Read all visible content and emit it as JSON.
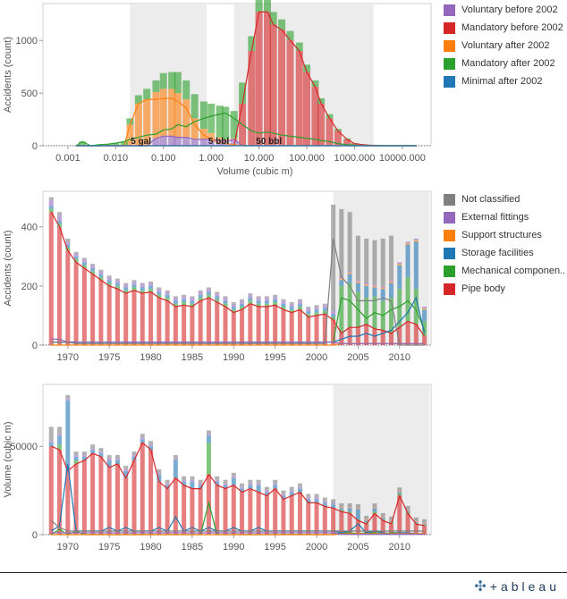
{
  "colors": {
    "voluntary_before": "#9467bd",
    "mandatory_before": "#d62728",
    "voluntary_after": "#ff7f0e",
    "mandatory_after": "#2ca02c",
    "minimal_after": "#1f77b4",
    "not_classified": "#7f7f7f",
    "external_fittings": "#9467bd",
    "support_structures": "#ff7f0e",
    "storage_facilities": "#1f77b4",
    "mechanical_components": "#2ca02c",
    "pipe_body": "#d62728"
  },
  "legend1": [
    {
      "label": "Voluntary before 2002",
      "color": "#9467bd"
    },
    {
      "label": "Mandatory before 2002",
      "color": "#d62728"
    },
    {
      "label": "Voluntary after 2002",
      "color": "#ff7f0e"
    },
    {
      "label": "Mandatory after 2002",
      "color": "#2ca02c"
    },
    {
      "label": "Minimal after 2002",
      "color": "#1f77b4"
    }
  ],
  "legend2": [
    {
      "label": "Not classified",
      "color": "#7f7f7f"
    },
    {
      "label": "External fittings",
      "color": "#9467bd"
    },
    {
      "label": "Support structures",
      "color": "#ff7f0e"
    },
    {
      "label": "Storage facilities",
      "color": "#1f77b4"
    },
    {
      "label": "Mechanical componen..",
      "color": "#2ca02c"
    },
    {
      "label": "Pipe body",
      "color": "#d62728"
    }
  ],
  "brand": {
    "name": "+ableau"
  },
  "chart_data": [
    {
      "type": "bar",
      "xlabel": "Volume (cubic m)",
      "ylabel": "Accidents (count)",
      "x_scale": "log",
      "xlim": [
        0.0003,
        40000
      ],
      "ylim": [
        0,
        1350
      ],
      "x_ticks": [
        "0.001",
        "0.010",
        "0.100",
        "1.000",
        "10.000",
        "100.000",
        "1000.000",
        "10000.000"
      ],
      "x_tick_values": [
        0.001,
        0.01,
        0.1,
        1,
        10,
        100,
        1000,
        10000
      ],
      "y_ticks": [
        0,
        500,
        1000
      ],
      "shaded_range": [
        0.02,
        0.8
      ],
      "shaded_range_2": [
        3,
        2500
      ],
      "annotations": [
        {
          "text": "5 gal",
          "x": 0.019
        },
        {
          "text": "5 bbl",
          "x": 0.795
        },
        {
          "text": "50 bbl",
          "x": 7.95
        }
      ],
      "x": [
        0.0015,
        0.002,
        0.003,
        0.0045,
        0.007,
        0.01,
        0.015,
        0.02,
        0.03,
        0.045,
        0.07,
        0.1,
        0.15,
        0.2,
        0.3,
        0.45,
        0.7,
        1,
        1.5,
        2,
        3,
        4.5,
        7,
        10,
        15,
        20,
        30,
        45,
        70,
        100,
        150,
        200,
        300,
        450,
        700,
        1000,
        1500,
        2000,
        3000,
        4500,
        7000,
        10000,
        20000
      ],
      "series": [
        {
          "name": "Voluntary before 2002",
          "values": [
            0,
            0,
            0,
            0,
            0,
            0,
            0,
            0,
            0,
            0,
            70,
            90,
            90,
            80,
            80,
            60,
            60,
            60,
            50,
            40,
            60,
            0,
            0,
            0,
            0,
            0,
            0,
            0,
            0,
            0,
            0,
            0,
            0,
            0,
            0,
            0,
            0,
            0,
            0,
            0,
            0,
            0,
            0
          ]
        },
        {
          "name": "Mandatory before 2002",
          "values": [
            0,
            0,
            0,
            0,
            0,
            0,
            0,
            0,
            0,
            0,
            0,
            0,
            0,
            0,
            0,
            0,
            0,
            0,
            0,
            0,
            0,
            400,
            900,
            1270,
            1270,
            1150,
            1100,
            1000,
            900,
            700,
            560,
            400,
            260,
            140,
            60,
            20,
            10,
            5,
            3,
            2,
            1,
            1,
            0
          ]
        },
        {
          "name": "Voluntary after 2002",
          "values": [
            0,
            0,
            0,
            0,
            0,
            0,
            0,
            200,
            400,
            440,
            440,
            450,
            450,
            420,
            360,
            200,
            100,
            60,
            30,
            20,
            10,
            0,
            0,
            0,
            0,
            0,
            0,
            0,
            0,
            0,
            0,
            0,
            0,
            0,
            0,
            0,
            0,
            0,
            0,
            0,
            0,
            0,
            0
          ]
        },
        {
          "name": "Mandatory after 2002",
          "values": [
            0,
            40,
            0,
            10,
            15,
            25,
            40,
            60,
            80,
            100,
            110,
            150,
            160,
            200,
            180,
            230,
            260,
            280,
            300,
            310,
            260,
            200,
            140,
            120,
            130,
            120,
            100,
            90,
            80,
            70,
            60,
            50,
            40,
            20,
            10,
            5,
            0,
            0,
            0,
            0,
            0,
            0,
            0
          ]
        },
        {
          "name": "Minimal after 2002",
          "values": [
            0,
            0,
            0,
            0,
            0,
            0,
            0,
            0,
            0,
            0,
            0,
            0,
            0,
            0,
            0,
            0,
            0,
            0,
            0,
            0,
            0,
            0,
            0,
            0,
            0,
            0,
            0,
            0,
            0,
            0,
            0,
            0,
            0,
            0,
            0,
            0,
            0,
            0,
            0,
            0,
            0,
            0,
            0
          ]
        }
      ]
    },
    {
      "type": "bar",
      "ylabel": "Accidents (count)",
      "xlim": [
        1967,
        2013.8
      ],
      "ylim": [
        0,
        520
      ],
      "x_ticks": [
        "1970",
        "1975",
        "1980",
        "1985",
        "1990",
        "1995",
        "2000",
        "2005",
        "2010"
      ],
      "x_tick_values": [
        1970,
        1975,
        1980,
        1985,
        1990,
        1995,
        2000,
        2005,
        2010
      ],
      "y_ticks": [
        0,
        200,
        400
      ],
      "shaded_range": [
        2002,
        2013.6
      ],
      "x": [
        1968,
        1969,
        1970,
        1971,
        1972,
        1973,
        1974,
        1975,
        1976,
        1977,
        1978,
        1979,
        1980,
        1981,
        1982,
        1983,
        1984,
        1985,
        1986,
        1987,
        1988,
        1989,
        1990,
        1991,
        1992,
        1993,
        1994,
        1995,
        1996,
        1997,
        1998,
        1999,
        2000,
        2001,
        2002,
        2003,
        2004,
        2005,
        2006,
        2007,
        2008,
        2009,
        2010,
        2011,
        2012,
        2013
      ],
      "series": [
        {
          "name": "Pipe body",
          "values": [
            450,
            400,
            320,
            280,
            260,
            240,
            220,
            200,
            190,
            175,
            185,
            175,
            180,
            160,
            150,
            130,
            135,
            130,
            150,
            160,
            145,
            130,
            110,
            120,
            140,
            130,
            130,
            135,
            120,
            110,
            120,
            95,
            100,
            105,
            85,
            40,
            60,
            60,
            70,
            55,
            50,
            40,
            60,
            80,
            70,
            30
          ]
        },
        {
          "name": "Mechanical componen..",
          "values": [
            10,
            10,
            10,
            10,
            10,
            10,
            10,
            10,
            10,
            10,
            10,
            10,
            10,
            10,
            10,
            10,
            10,
            10,
            10,
            10,
            10,
            10,
            10,
            10,
            10,
            10,
            10,
            10,
            10,
            10,
            10,
            10,
            10,
            10,
            10,
            160,
            150,
            120,
            90,
            110,
            100,
            120,
            130,
            150,
            120,
            50
          ]
        },
        {
          "name": "Storage facilities",
          "values": [
            10,
            10,
            10,
            10,
            10,
            10,
            10,
            10,
            10,
            10,
            10,
            10,
            10,
            10,
            10,
            10,
            10,
            10,
            10,
            10,
            10,
            10,
            10,
            10,
            10,
            10,
            10,
            10,
            10,
            10,
            10,
            10,
            10,
            10,
            10,
            20,
            30,
            30,
            40,
            30,
            40,
            50,
            80,
            110,
            160,
            40
          ]
        },
        {
          "name": "Support structures",
          "values": [
            0,
            0,
            0,
            0,
            0,
            0,
            0,
            0,
            0,
            0,
            0,
            0,
            0,
            0,
            0,
            0,
            0,
            0,
            0,
            0,
            0,
            0,
            0,
            0,
            0,
            0,
            0,
            0,
            0,
            0,
            0,
            0,
            0,
            0,
            0,
            5,
            5,
            5,
            5,
            5,
            5,
            5,
            5,
            5,
            5,
            5
          ]
        },
        {
          "name": "External fittings",
          "values": [
            20,
            20,
            10,
            10,
            10,
            10,
            10,
            10,
            10,
            10,
            10,
            10,
            10,
            10,
            10,
            10,
            10,
            10,
            10,
            10,
            10,
            10,
            10,
            10,
            10,
            10,
            10,
            10,
            10,
            10,
            10,
            10,
            10,
            10,
            10,
            5,
            5,
            5,
            5,
            5,
            5,
            5,
            5,
            5,
            5,
            5
          ]
        },
        {
          "name": "Not classified",
          "values": [
            10,
            10,
            10,
            5,
            5,
            5,
            5,
            5,
            5,
            5,
            5,
            5,
            5,
            5,
            5,
            5,
            5,
            5,
            5,
            5,
            5,
            5,
            5,
            5,
            5,
            5,
            5,
            5,
            5,
            5,
            5,
            5,
            5,
            5,
            360,
            230,
            200,
            150,
            150,
            150,
            160,
            150,
            0,
            0,
            0,
            0
          ]
        }
      ]
    },
    {
      "type": "bar",
      "ylabel": "Volume (cubic m)",
      "xlim": [
        1967,
        2013.8
      ],
      "ylim": [
        0,
        85000
      ],
      "x_ticks": [
        "1970",
        "1975",
        "1980",
        "1985",
        "1990",
        "1995",
        "2000",
        "2005",
        "2010"
      ],
      "x_tick_values": [
        1970,
        1975,
        1980,
        1985,
        1990,
        1995,
        2000,
        2005,
        2010
      ],
      "y_ticks": [
        0,
        50000
      ],
      "y_tick_labels": [
        "0",
        "50000"
      ],
      "shaded_range": [
        2002,
        2013.6
      ],
      "x": [
        1968,
        1969,
        1970,
        1971,
        1972,
        1973,
        1974,
        1975,
        1976,
        1977,
        1978,
        1979,
        1980,
        1981,
        1982,
        1983,
        1984,
        1985,
        1986,
        1987,
        1988,
        1989,
        1990,
        1991,
        1992,
        1993,
        1994,
        1995,
        1996,
        1997,
        1998,
        1999,
        2000,
        2001,
        2002,
        2003,
        2004,
        2005,
        2006,
        2007,
        2008,
        2009,
        2010,
        2011,
        2012,
        2013
      ],
      "series": [
        {
          "name": "Pipe body",
          "values": [
            50000,
            48000,
            36000,
            40000,
            42000,
            46000,
            44000,
            38000,
            40000,
            32000,
            42000,
            52000,
            48000,
            30000,
            26000,
            32000,
            28000,
            26000,
            26000,
            34000,
            28000,
            26000,
            28000,
            24000,
            26000,
            24000,
            22000,
            26000,
            20000,
            22000,
            24000,
            18000,
            18000,
            16000,
            15000,
            13000,
            12000,
            8000,
            6000,
            12000,
            8000,
            6000,
            22000,
            12000,
            6000,
            5000
          ]
        },
        {
          "name": "Mechanical componen..",
          "values": [
            0,
            3000,
            0,
            2000,
            0,
            0,
            0,
            0,
            0,
            0,
            0,
            0,
            0,
            0,
            0,
            0,
            0,
            0,
            0,
            18000,
            0,
            0,
            0,
            0,
            0,
            0,
            0,
            0,
            0,
            0,
            0,
            0,
            0,
            0,
            0,
            1000,
            1000,
            500,
            1000,
            1000,
            500,
            1000,
            1000,
            500,
            500,
            500
          ]
        },
        {
          "name": "Storage facilities",
          "values": [
            2000,
            5000,
            40000,
            2000,
            2000,
            2000,
            2000,
            4000,
            2000,
            4000,
            2000,
            2000,
            2000,
            4000,
            2000,
            10000,
            2000,
            4000,
            2000,
            4000,
            2000,
            2000,
            4000,
            2000,
            2000,
            4000,
            2000,
            2000,
            2000,
            2000,
            2000,
            2000,
            2000,
            2000,
            2000,
            1000,
            2000,
            6000,
            1000,
            2000,
            1000,
            500,
            1000,
            1000,
            500,
            500
          ]
        },
        {
          "name": "Support structures",
          "values": [
            0,
            0,
            0,
            0,
            0,
            0,
            0,
            0,
            0,
            0,
            0,
            0,
            0,
            0,
            0,
            0,
            0,
            0,
            0,
            0,
            0,
            0,
            0,
            0,
            0,
            0,
            0,
            0,
            0,
            0,
            0,
            0,
            0,
            0,
            0,
            500,
            500,
            500,
            500,
            500,
            500,
            500,
            500,
            500,
            500,
            500
          ]
        },
        {
          "name": "External fittings",
          "values": [
            1000,
            1000,
            1000,
            1000,
            1000,
            1000,
            1000,
            1000,
            1000,
            1000,
            1000,
            1000,
            1000,
            1000,
            1000,
            1000,
            1000,
            1000,
            1000,
            1000,
            1000,
            1000,
            1000,
            1000,
            1000,
            1000,
            1000,
            1000,
            1000,
            1000,
            1000,
            1000,
            1000,
            1000,
            1000,
            200,
            200,
            200,
            200,
            200,
            200,
            200,
            200,
            200,
            200,
            200
          ]
        },
        {
          "name": "Not classified",
          "values": [
            8000,
            4000,
            2000,
            2000,
            2000,
            2000,
            2000,
            2000,
            2000,
            2000,
            2000,
            2000,
            2000,
            2000,
            2000,
            2000,
            2000,
            2000,
            2000,
            2000,
            2000,
            2000,
            2000,
            2000,
            2000,
            2000,
            2000,
            2000,
            2000,
            2000,
            2000,
            2000,
            2000,
            2000,
            2000,
            2000,
            2000,
            2000,
            2000,
            2000,
            2000,
            2000,
            2000,
            2000,
            2000,
            2000
          ]
        }
      ]
    }
  ]
}
